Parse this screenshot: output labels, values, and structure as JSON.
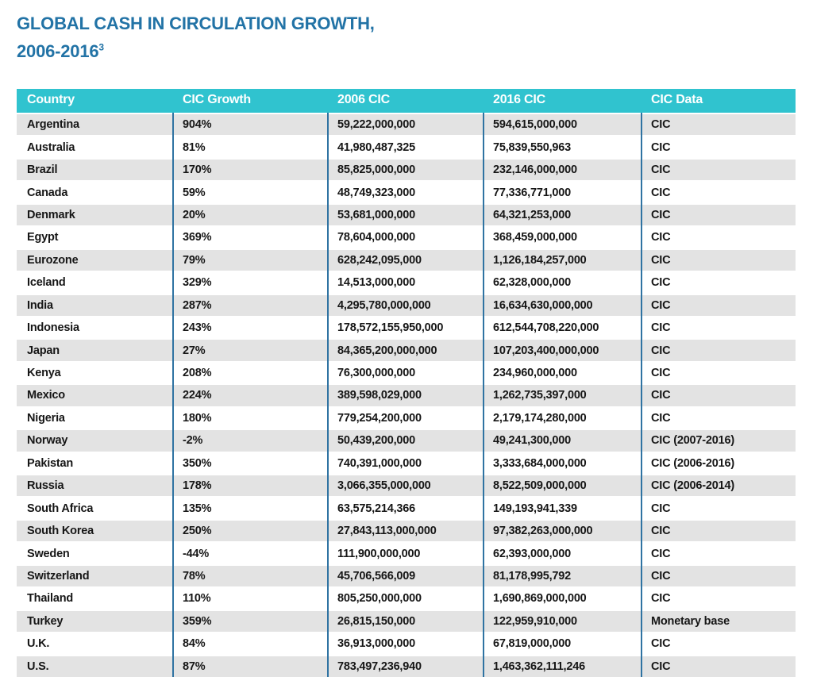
{
  "title": {
    "line1": "GLOBAL CASH IN CIRCULATION GROWTH,",
    "line2": "2006-2016",
    "footnote_marker": "3"
  },
  "colors": {
    "title_blue": "#2273A6",
    "header_teal": "#30C3CF",
    "stripe_gray": "#E3E3E3",
    "separator_blue": "#2F73A2",
    "cell_text": "#161616"
  },
  "table": {
    "columns": [
      "Country",
      "CIC Growth",
      "2006 CIC",
      "2016 CIC",
      "CIC Data"
    ],
    "rows": [
      {
        "country": "Argentina",
        "growth": "904%",
        "cic_2006": "59,222,000,000",
        "cic_2016": "594,615,000,000",
        "data_source": "CIC"
      },
      {
        "country": "Australia",
        "growth": "81%",
        "cic_2006": "41,980,487,325",
        "cic_2016": "75,839,550,963",
        "data_source": "CIC"
      },
      {
        "country": "Brazil",
        "growth": "170%",
        "cic_2006": "85,825,000,000",
        "cic_2016": "232,146,000,000",
        "data_source": "CIC"
      },
      {
        "country": "Canada",
        "growth": "59%",
        "cic_2006": "48,749,323,000",
        "cic_2016": "77,336,771,000",
        "data_source": "CIC"
      },
      {
        "country": "Denmark",
        "growth": "20%",
        "cic_2006": "53,681,000,000",
        "cic_2016": "64,321,253,000",
        "data_source": "CIC"
      },
      {
        "country": "Egypt",
        "growth": "369%",
        "cic_2006": "78,604,000,000",
        "cic_2016": "368,459,000,000",
        "data_source": "CIC"
      },
      {
        "country": "Eurozone",
        "growth": "79%",
        "cic_2006": "628,242,095,000",
        "cic_2016": "1,126,184,257,000",
        "data_source": "CIC"
      },
      {
        "country": "Iceland",
        "growth": "329%",
        "cic_2006": "14,513,000,000",
        "cic_2016": "62,328,000,000",
        "data_source": "CIC"
      },
      {
        "country": "India",
        "growth": "287%",
        "cic_2006": "4,295,780,000,000",
        "cic_2016": "16,634,630,000,000",
        "data_source": "CIC"
      },
      {
        "country": "Indonesia",
        "growth": "243%",
        "cic_2006": "178,572,155,950,000",
        "cic_2016": "612,544,708,220,000",
        "data_source": "CIC"
      },
      {
        "country": "Japan",
        "growth": "27%",
        "cic_2006": "84,365,200,000,000",
        "cic_2016": "107,203,400,000,000",
        "data_source": "CIC"
      },
      {
        "country": "Kenya",
        "growth": "208%",
        "cic_2006": "76,300,000,000",
        "cic_2016": "234,960,000,000",
        "data_source": "CIC"
      },
      {
        "country": "Mexico",
        "growth": "224%",
        "cic_2006": "389,598,029,000",
        "cic_2016": "1,262,735,397,000",
        "data_source": "CIC"
      },
      {
        "country": "Nigeria",
        "growth": "180%",
        "cic_2006": "779,254,200,000",
        "cic_2016": "2,179,174,280,000",
        "data_source": "CIC"
      },
      {
        "country": "Norway",
        "growth": "-2%",
        "cic_2006": "50,439,200,000",
        "cic_2016": "49,241,300,000",
        "data_source": "CIC (2007-2016)"
      },
      {
        "country": "Pakistan",
        "growth": "350%",
        "cic_2006": "740,391,000,000",
        "cic_2016": "3,333,684,000,000",
        "data_source": "CIC (2006-2016)"
      },
      {
        "country": "Russia",
        "growth": "178%",
        "cic_2006": "3,066,355,000,000",
        "cic_2016": "8,522,509,000,000",
        "data_source": "CIC (2006-2014)"
      },
      {
        "country": "South Africa",
        "growth": "135%",
        "cic_2006": "63,575,214,366",
        "cic_2016": "149,193,941,339",
        "data_source": "CIC"
      },
      {
        "country": "South Korea",
        "growth": "250%",
        "cic_2006": "27,843,113,000,000",
        "cic_2016": "97,382,263,000,000",
        "data_source": "CIC"
      },
      {
        "country": "Sweden",
        "growth": "-44%",
        "cic_2006": "111,900,000,000",
        "cic_2016": "62,393,000,000",
        "data_source": "CIC"
      },
      {
        "country": "Switzerland",
        "growth": "78%",
        "cic_2006": "45,706,566,009",
        "cic_2016": "81,178,995,792",
        "data_source": "CIC"
      },
      {
        "country": "Thailand",
        "growth": "110%",
        "cic_2006": "805,250,000,000",
        "cic_2016": "1,690,869,000,000",
        "data_source": "CIC"
      },
      {
        "country": "Turkey",
        "growth": "359%",
        "cic_2006": "26,815,150,000",
        "cic_2016": "122,959,910,000",
        "data_source": "Monetary base"
      },
      {
        "country": "U.K.",
        "growth": "84%",
        "cic_2006": "36,913,000,000",
        "cic_2016": "67,819,000,000",
        "data_source": "CIC"
      },
      {
        "country": "U.S.",
        "growth": "87%",
        "cic_2006": "783,497,236,940",
        "cic_2016": "1,463,362,111,246",
        "data_source": "CIC"
      }
    ]
  },
  "chart_data": {
    "type": "table",
    "title": "GLOBAL CASH IN CIRCULATION GROWTH, 2006-2016",
    "columns": [
      "Country",
      "CIC Growth",
      "2006 CIC",
      "2016 CIC",
      "CIC Data"
    ],
    "rows": [
      [
        "Argentina",
        "904%",
        "59,222,000,000",
        "594,615,000,000",
        "CIC"
      ],
      [
        "Australia",
        "81%",
        "41,980,487,325",
        "75,839,550,963",
        "CIC"
      ],
      [
        "Brazil",
        "170%",
        "85,825,000,000",
        "232,146,000,000",
        "CIC"
      ],
      [
        "Canada",
        "59%",
        "48,749,323,000",
        "77,336,771,000",
        "CIC"
      ],
      [
        "Denmark",
        "20%",
        "53,681,000,000",
        "64,321,253,000",
        "CIC"
      ],
      [
        "Egypt",
        "369%",
        "78,604,000,000",
        "368,459,000,000",
        "CIC"
      ],
      [
        "Eurozone",
        "79%",
        "628,242,095,000",
        "1,126,184,257,000",
        "CIC"
      ],
      [
        "Iceland",
        "329%",
        "14,513,000,000",
        "62,328,000,000",
        "CIC"
      ],
      [
        "India",
        "287%",
        "4,295,780,000,000",
        "16,634,630,000,000",
        "CIC"
      ],
      [
        "Indonesia",
        "243%",
        "178,572,155,950,000",
        "612,544,708,220,000",
        "CIC"
      ],
      [
        "Japan",
        "27%",
        "84,365,200,000,000",
        "107,203,400,000,000",
        "CIC"
      ],
      [
        "Kenya",
        "208%",
        "76,300,000,000",
        "234,960,000,000",
        "CIC"
      ],
      [
        "Mexico",
        "224%",
        "389,598,029,000",
        "1,262,735,397,000",
        "CIC"
      ],
      [
        "Nigeria",
        "180%",
        "779,254,200,000",
        "2,179,174,280,000",
        "CIC"
      ],
      [
        "Norway",
        "-2%",
        "50,439,200,000",
        "49,241,300,000",
        "CIC (2007-2016)"
      ],
      [
        "Pakistan",
        "350%",
        "740,391,000,000",
        "3,333,684,000,000",
        "CIC (2006-2016)"
      ],
      [
        "Russia",
        "178%",
        "3,066,355,000,000",
        "8,522,509,000,000",
        "CIC (2006-2014)"
      ],
      [
        "South Africa",
        "135%",
        "63,575,214,366",
        "149,193,941,339",
        "CIC"
      ],
      [
        "South Korea",
        "250%",
        "27,843,113,000,000",
        "97,382,263,000,000",
        "CIC"
      ],
      [
        "Sweden",
        "-44%",
        "111,900,000,000",
        "62,393,000,000",
        "CIC"
      ],
      [
        "Switzerland",
        "78%",
        "45,706,566,009",
        "81,178,995,792",
        "CIC"
      ],
      [
        "Thailand",
        "110%",
        "805,250,000,000",
        "1,690,869,000,000",
        "CIC"
      ],
      [
        "Turkey",
        "359%",
        "26,815,150,000",
        "122,959,910,000",
        "Monetary base"
      ],
      [
        "U.K.",
        "84%",
        "36,913,000,000",
        "67,819,000,000",
        "CIC"
      ],
      [
        "U.S.",
        "87%",
        "783,497,236,940",
        "1,463,362,111,246",
        "CIC"
      ]
    ]
  }
}
